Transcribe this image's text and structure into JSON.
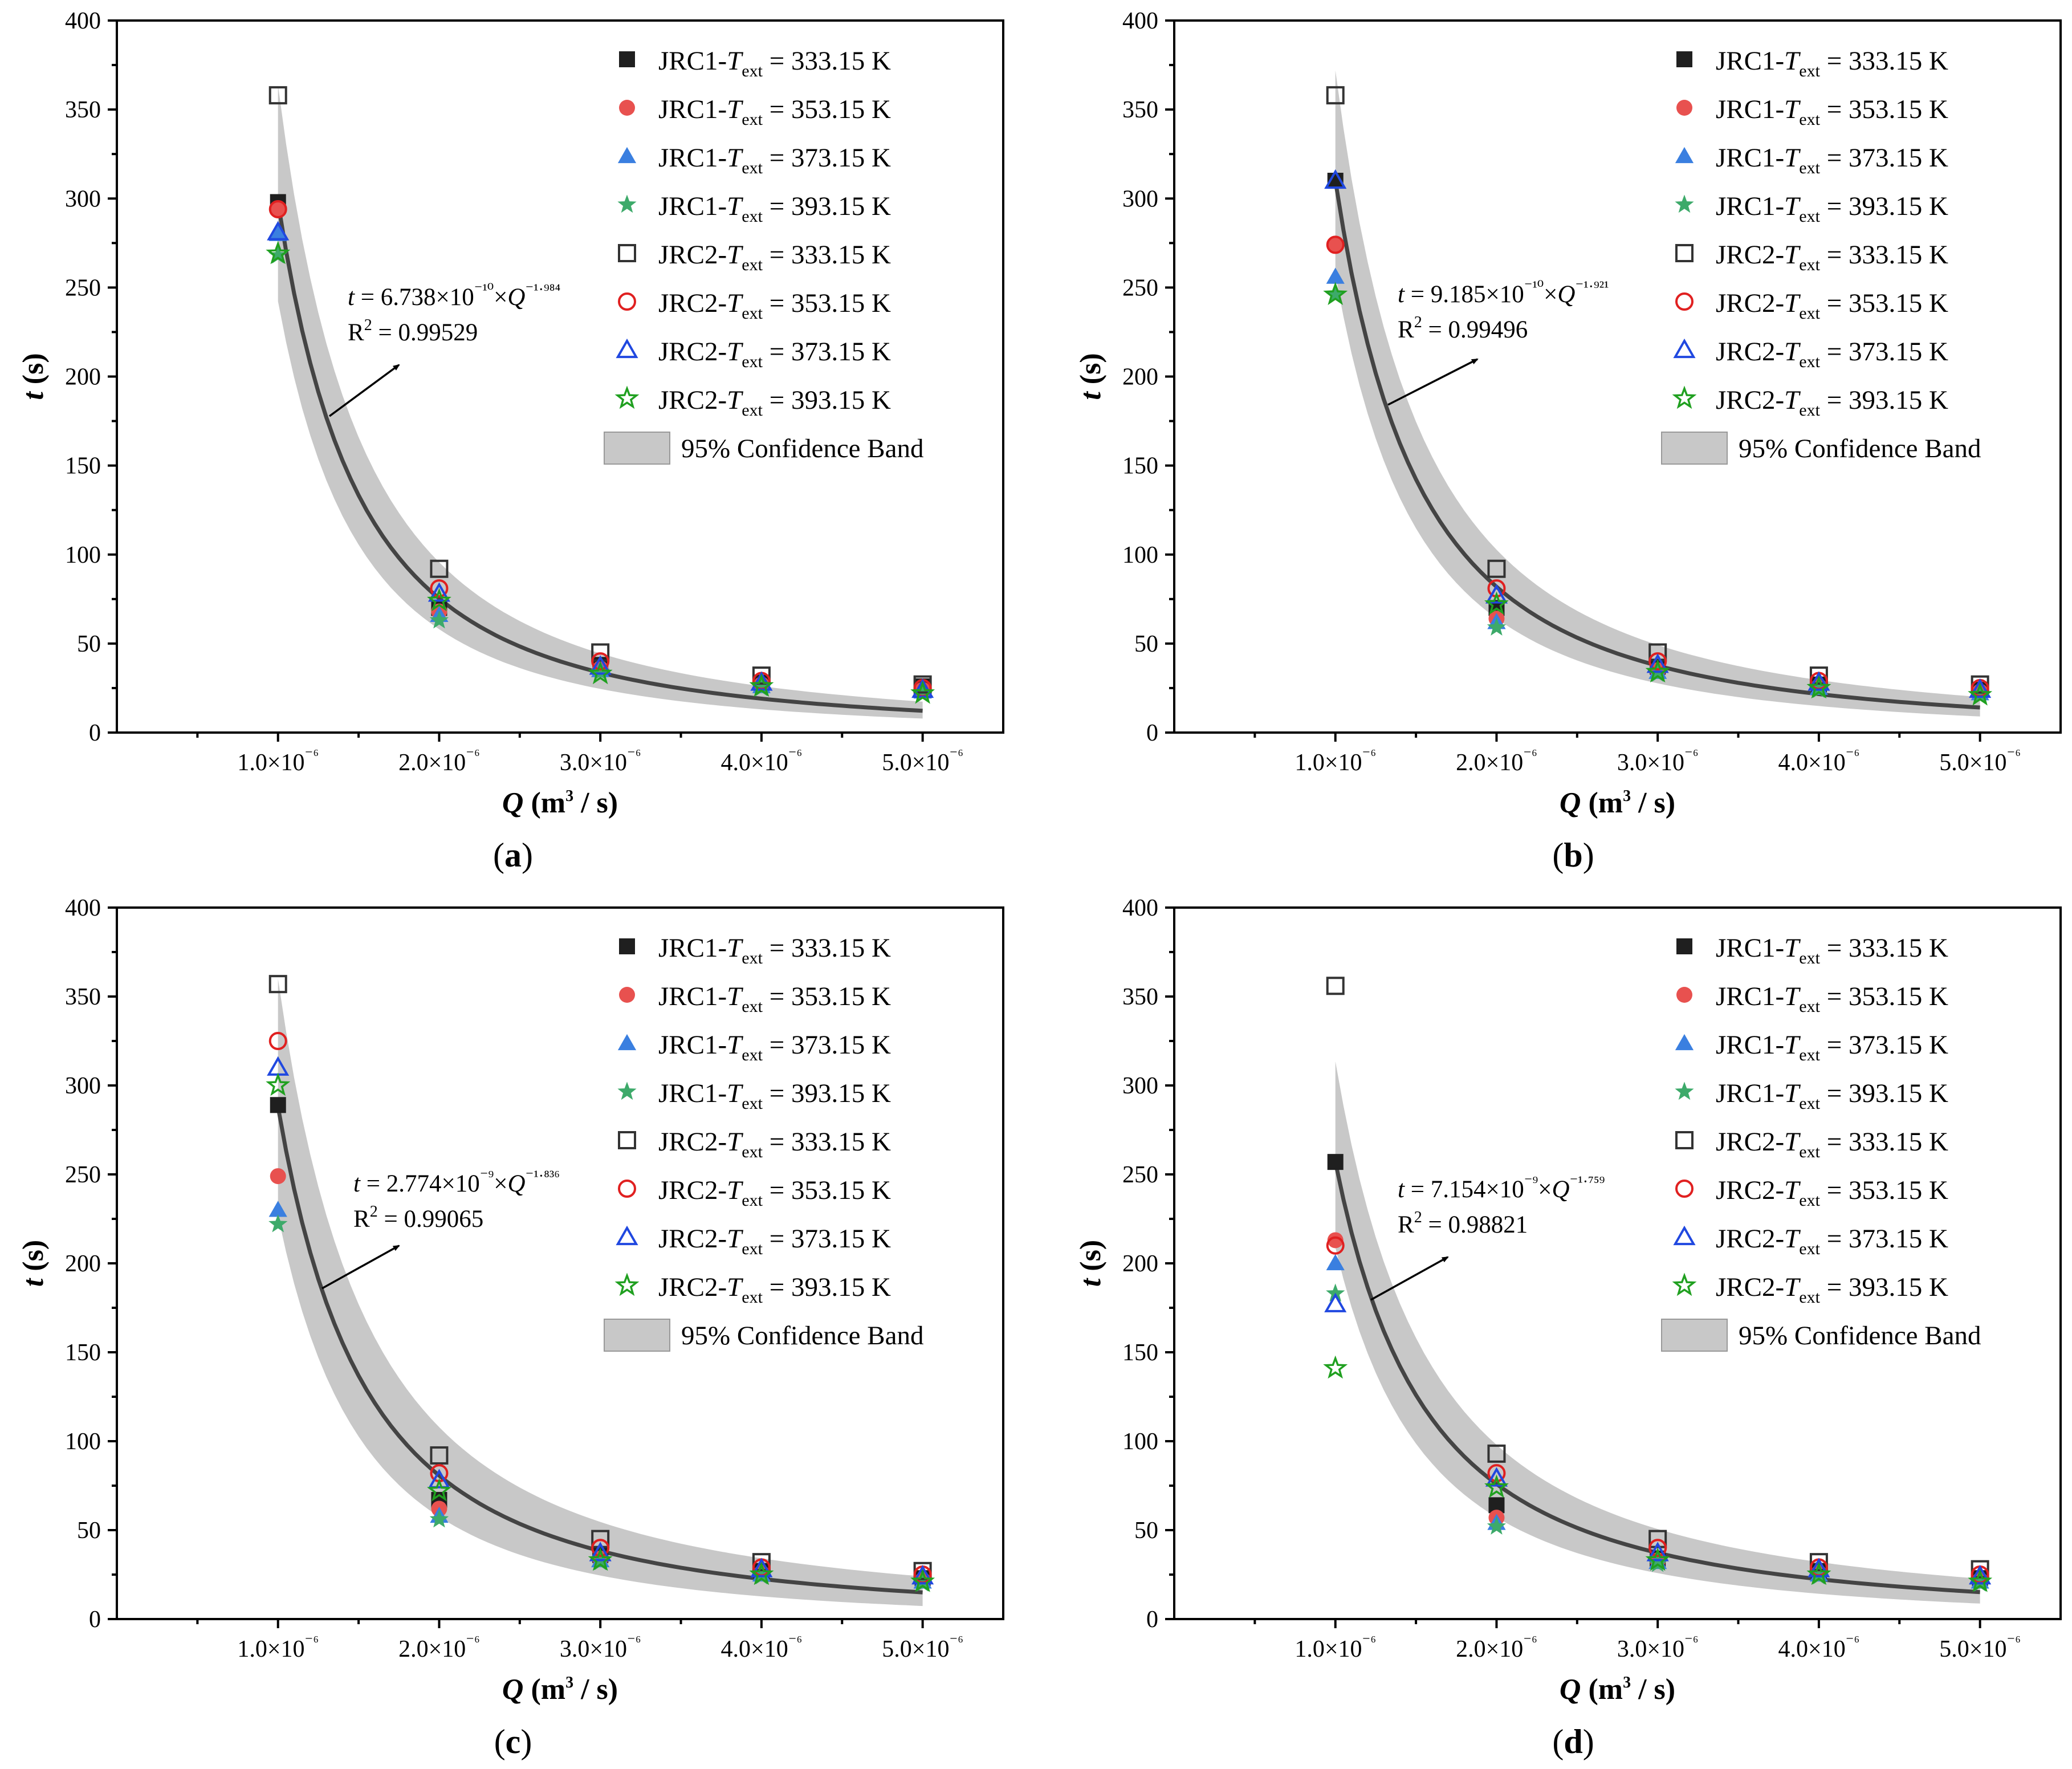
{
  "chart_data": [
    {
      "type": "scatter",
      "panel_label": "(a)",
      "xlabel": "Q (m³ / s)",
      "ylabel": "t (s)",
      "x_ticks": [
        "1.0×10⁻⁶",
        "2.0×10⁻⁶",
        "3.0×10⁻⁶",
        "4.0×10⁻⁶",
        "5.0×10⁻⁶"
      ],
      "y_ticks": [
        0,
        50,
        100,
        150,
        200,
        250,
        300,
        350,
        400
      ],
      "ylim": [
        0,
        400
      ],
      "xlim": [
        0,
        5.5
      ],
      "x": [
        1,
        2,
        3,
        4,
        5
      ],
      "fit": {
        "equation": "t = 6.738×10⁻¹⁰×Q⁻¹·⁹⁸⁴",
        "r2": "R² = 0.99529",
        "a": 298,
        "b": 1.984,
        "band_ratio": [
          0.22,
          0.42
        ]
      },
      "series": [
        {
          "name": "JRC1-Text = 333.15 K",
          "marker": "square-filled",
          "color": "#1f1f1f",
          "values": [
            298,
            70,
            38,
            28,
            26
          ]
        },
        {
          "name": "JRC1-Text = 353.15 K",
          "marker": "circle-filled",
          "color": "#e8514f",
          "values": [
            294,
            68,
            36,
            27,
            24
          ]
        },
        {
          "name": "JRC1-Text = 373.15 K",
          "marker": "triangle-filled",
          "color": "#3a7fe0",
          "values": [
            280,
            66,
            35,
            26,
            23
          ]
        },
        {
          "name": "JRC1-Text = 393.15 K",
          "marker": "star-filled",
          "color": "#3daa6a",
          "values": [
            268,
            63,
            34,
            25,
            22
          ]
        },
        {
          "name": "JRC2-Text = 333.15 K",
          "marker": "square-open",
          "color": "#333333",
          "values": [
            358,
            92,
            45,
            32,
            27
          ]
        },
        {
          "name": "JRC2-Text = 353.15 K",
          "marker": "circle-open",
          "color": "#e02020",
          "values": [
            294,
            81,
            40,
            29,
            25
          ]
        },
        {
          "name": "JRC2-Text = 373.15 K",
          "marker": "triangle-open",
          "color": "#2048e0",
          "values": [
            281,
            78,
            37,
            28,
            24
          ]
        },
        {
          "name": "JRC2-Text = 393.15 K",
          "marker": "star-open",
          "color": "#20a020",
          "values": [
            269,
            74,
            33,
            26,
            22
          ]
        }
      ],
      "legend": {
        "band_label": "95% Confidence Band",
        "position": "top-right"
      }
    },
    {
      "type": "scatter",
      "panel_label": "(b)",
      "xlabel": "Q (m³ / s)",
      "ylabel": "t (s)",
      "x_ticks": [
        "1.0×10⁻⁶",
        "2.0×10⁻⁶",
        "3.0×10⁻⁶",
        "4.0×10⁻⁶",
        "5.0×10⁻⁶"
      ],
      "y_ticks": [
        0,
        50,
        100,
        150,
        200,
        250,
        300,
        350,
        400
      ],
      "ylim": [
        0,
        400
      ],
      "xlim": [
        0,
        5.5
      ],
      "x": [
        1,
        2,
        3,
        4,
        5
      ],
      "fit": {
        "equation": "t = 9.185×10⁻¹⁰×Q⁻¹·⁹²¹",
        "r2": "R² = 0.99496",
        "a": 310,
        "b": 1.921,
        "band_ratio": [
          0.2,
          0.42
        ]
      },
      "series": [
        {
          "name": "JRC1-Text = 333.15 K",
          "marker": "square-filled",
          "color": "#1f1f1f",
          "values": [
            310,
            70,
            37,
            27,
            24
          ]
        },
        {
          "name": "JRC1-Text = 353.15 K",
          "marker": "circle-filled",
          "color": "#e8514f",
          "values": [
            274,
            64,
            35,
            26,
            23
          ]
        },
        {
          "name": "JRC1-Text = 373.15 K",
          "marker": "triangle-filled",
          "color": "#3a7fe0",
          "values": [
            256,
            62,
            34,
            25,
            22
          ]
        },
        {
          "name": "JRC1-Text = 393.15 K",
          "marker": "star-filled",
          "color": "#3daa6a",
          "values": [
            246,
            59,
            33,
            24,
            21
          ]
        },
        {
          "name": "JRC2-Text = 333.15 K",
          "marker": "square-open",
          "color": "#333333",
          "values": [
            358,
            92,
            45,
            32,
            27
          ]
        },
        {
          "name": "JRC2-Text = 353.15 K",
          "marker": "circle-open",
          "color": "#e02020",
          "values": [
            274,
            81,
            40,
            29,
            25
          ]
        },
        {
          "name": "JRC2-Text = 373.15 K",
          "marker": "triangle-open",
          "color": "#2048e0",
          "values": [
            310,
            77,
            38,
            28,
            24
          ]
        },
        {
          "name": "JRC2-Text = 393.15 K",
          "marker": "star-open",
          "color": "#20a020",
          "values": [
            246,
            72,
            34,
            25,
            21
          ]
        }
      ],
      "legend": {
        "band_label": "95% Confidence Band",
        "position": "top-right"
      }
    },
    {
      "type": "scatter",
      "panel_label": "(c)",
      "xlabel": "Q (m³ / s)",
      "ylabel": "t (s)",
      "x_ticks": [
        "1.0×10⁻⁶",
        "2.0×10⁻⁶",
        "3.0×10⁻⁶",
        "4.0×10⁻⁶",
        "5.0×10⁻⁶"
      ],
      "y_ticks": [
        0,
        50,
        100,
        150,
        200,
        250,
        300,
        350,
        400
      ],
      "ylim": [
        0,
        400
      ],
      "xlim": [
        0,
        5.5
      ],
      "x": [
        1,
        2,
        3,
        4,
        5
      ],
      "fit": {
        "equation": "t = 2.774×10⁻⁹×Q⁻¹·⁸³⁶",
        "r2": "R² = 0.99065",
        "a": 288,
        "b": 1.836,
        "band_ratio": [
          0.25,
          0.6
        ]
      },
      "series": [
        {
          "name": "JRC1-Text = 333.15 K",
          "marker": "square-filled",
          "color": "#1f1f1f",
          "values": [
            289,
            67,
            36,
            27,
            23
          ]
        },
        {
          "name": "JRC1-Text = 353.15 K",
          "marker": "circle-filled",
          "color": "#e8514f",
          "values": [
            249,
            62,
            34,
            26,
            22
          ]
        },
        {
          "name": "JRC1-Text = 373.15 K",
          "marker": "triangle-filled",
          "color": "#3a7fe0",
          "values": [
            230,
            58,
            33,
            25,
            21
          ]
        },
        {
          "name": "JRC1-Text = 393.15 K",
          "marker": "star-filled",
          "color": "#3daa6a",
          "values": [
            222,
            56,
            32,
            24,
            20
          ]
        },
        {
          "name": "JRC2-Text = 333.15 K",
          "marker": "square-open",
          "color": "#333333",
          "values": [
            357,
            92,
            45,
            32,
            27
          ]
        },
        {
          "name": "JRC2-Text = 353.15 K",
          "marker": "circle-open",
          "color": "#e02020",
          "values": [
            325,
            82,
            40,
            29,
            25
          ]
        },
        {
          "name": "JRC2-Text = 373.15 K",
          "marker": "triangle-open",
          "color": "#2048e0",
          "values": [
            310,
            78,
            37,
            28,
            24
          ]
        },
        {
          "name": "JRC2-Text = 393.15 K",
          "marker": "star-open",
          "color": "#20a020",
          "values": [
            300,
            72,
            33,
            25,
            21
          ]
        }
      ],
      "legend": {
        "band_label": "95% Confidence Band",
        "position": "top-right"
      }
    },
    {
      "type": "scatter",
      "panel_label": "(d)",
      "xlabel": "Q (m³ / s)",
      "ylabel": "t (s)",
      "x_ticks": [
        "1.0×10⁻⁶",
        "2.0×10⁻⁶",
        "3.0×10⁻⁶",
        "4.0×10⁻⁶",
        "5.0×10⁻⁶"
      ],
      "y_ticks": [
        0,
        50,
        100,
        150,
        200,
        250,
        300,
        350,
        400
      ],
      "ylim": [
        0,
        400
      ],
      "xlim": [
        0,
        5.5
      ],
      "x": [
        1,
        2,
        3,
        4,
        5
      ],
      "fit": {
        "equation": "t = 7.154×10⁻⁹×Q⁻¹·⁷⁵⁹",
        "r2": "R² = 0.98821",
        "a": 257,
        "b": 1.759,
        "band_ratio": [
          0.22,
          0.5
        ]
      },
      "series": [
        {
          "name": "JRC1-Text = 333.15 K",
          "marker": "square-filled",
          "color": "#1f1f1f",
          "values": [
            257,
            64,
            34,
            27,
            23
          ]
        },
        {
          "name": "JRC1-Text = 353.15 K",
          "marker": "circle-filled",
          "color": "#e8514f",
          "values": [
            213,
            57,
            33,
            26,
            22
          ]
        },
        {
          "name": "JRC1-Text = 373.15 K",
          "marker": "triangle-filled",
          "color": "#3a7fe0",
          "values": [
            200,
            54,
            32,
            25,
            21
          ]
        },
        {
          "name": "JRC1-Text = 393.15 K",
          "marker": "star-filled",
          "color": "#3daa6a",
          "values": [
            183,
            52,
            31,
            24,
            20
          ]
        },
        {
          "name": "JRC2-Text = 333.15 K",
          "marker": "square-open",
          "color": "#333333",
          "values": [
            356,
            93,
            45,
            32,
            28
          ]
        },
        {
          "name": "JRC2-Text = 353.15 K",
          "marker": "circle-open",
          "color": "#e02020",
          "values": [
            210,
            82,
            40,
            29,
            25
          ]
        },
        {
          "name": "JRC2-Text = 373.15 K",
          "marker": "triangle-open",
          "color": "#2048e0",
          "values": [
            177,
            79,
            37,
            28,
            24
          ]
        },
        {
          "name": "JRC2-Text = 393.15 K",
          "marker": "star-open",
          "color": "#20a020",
          "values": [
            141,
            74,
            33,
            25,
            21
          ]
        }
      ],
      "legend": {
        "band_label": "95% Confidence Band",
        "position": "top-right"
      }
    }
  ]
}
